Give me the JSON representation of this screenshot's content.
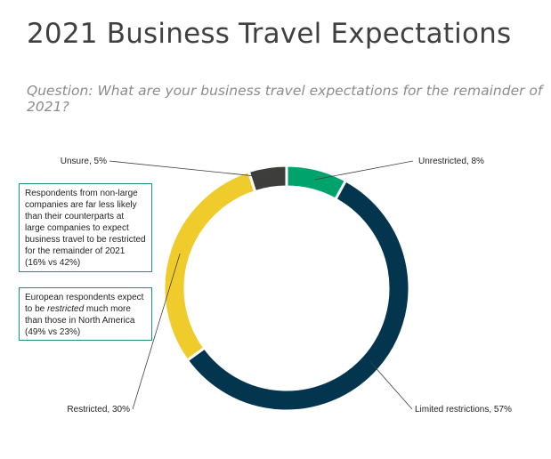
{
  "header": {
    "title": "2021 Business Travel Expectations",
    "subtitle": "Question: What are your business travel expectations for the remainder of 2021?"
  },
  "notes": {
    "note1": "Respondents from non-large companies are far less likely than their counterparts at large companies to expect business travel to be restricted for the remainder of 2021 (16% vs 42%)",
    "note2_pre": "European respondents expect to be ",
    "note2_em": "restricted",
    "note2_post": " much more than those in North America (49% vs 23%)"
  },
  "chart_data": {
    "type": "pie",
    "title": "2021 Business Travel Expectations",
    "slices": [
      {
        "label": "Unrestricted, 8%",
        "value": 8,
        "color": "#00a36c"
      },
      {
        "label": "Limited restrictions, 57%",
        "value": 57,
        "color": "#03354f"
      },
      {
        "label": "Restricted, 30%",
        "value": 30,
        "color": "#f0cb2c"
      },
      {
        "label": "Unsure, 5%",
        "value": 5,
        "color": "#3d3d3b"
      }
    ],
    "legend": "none"
  }
}
